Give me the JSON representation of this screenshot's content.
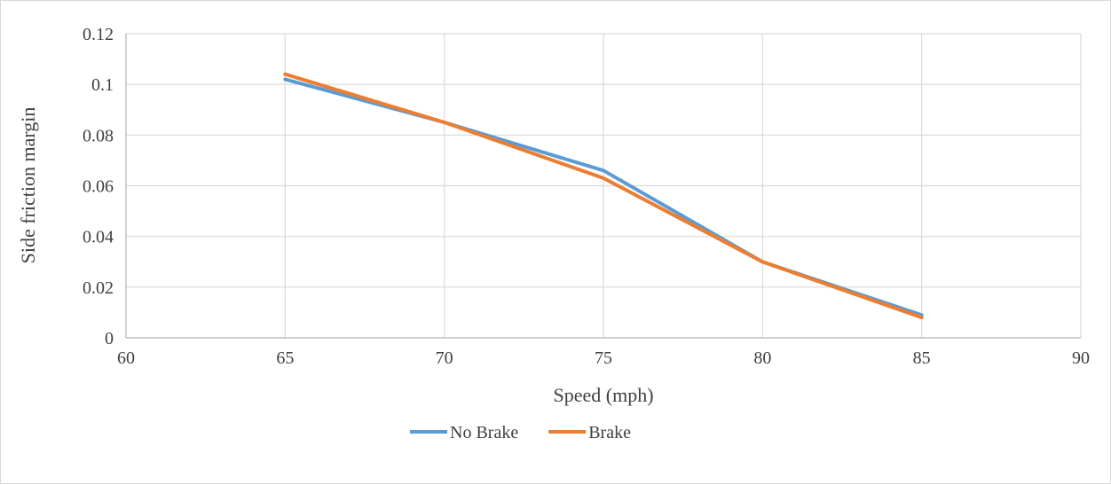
{
  "chart_data": {
    "type": "line",
    "title": "",
    "xlabel": "Speed (mph)",
    "ylabel": "Side friction margin",
    "xlim": [
      60,
      90
    ],
    "ylim": [
      0,
      0.12
    ],
    "xticks": [
      60,
      65,
      70,
      75,
      80,
      85,
      90
    ],
    "yticks": [
      0,
      0.02,
      0.04,
      0.06,
      0.08,
      0.1,
      0.12
    ],
    "xtick_labels": [
      "60",
      "65",
      "70",
      "75",
      "80",
      "85",
      "90"
    ],
    "ytick_labels": [
      "0",
      "0.02",
      "0.04",
      "0.06",
      "0.08",
      "0.1",
      "0.12"
    ],
    "grid": true,
    "legend_position": "bottom",
    "x": [
      65,
      70,
      75,
      80,
      85
    ],
    "series": [
      {
        "name": "No Brake",
        "color": "#5b9bd5",
        "values": [
          0.102,
          0.085,
          0.066,
          0.03,
          0.009
        ]
      },
      {
        "name": "Brake",
        "color": "#ed7d31",
        "values": [
          0.104,
          0.085,
          0.063,
          0.03,
          0.008
        ]
      }
    ]
  }
}
